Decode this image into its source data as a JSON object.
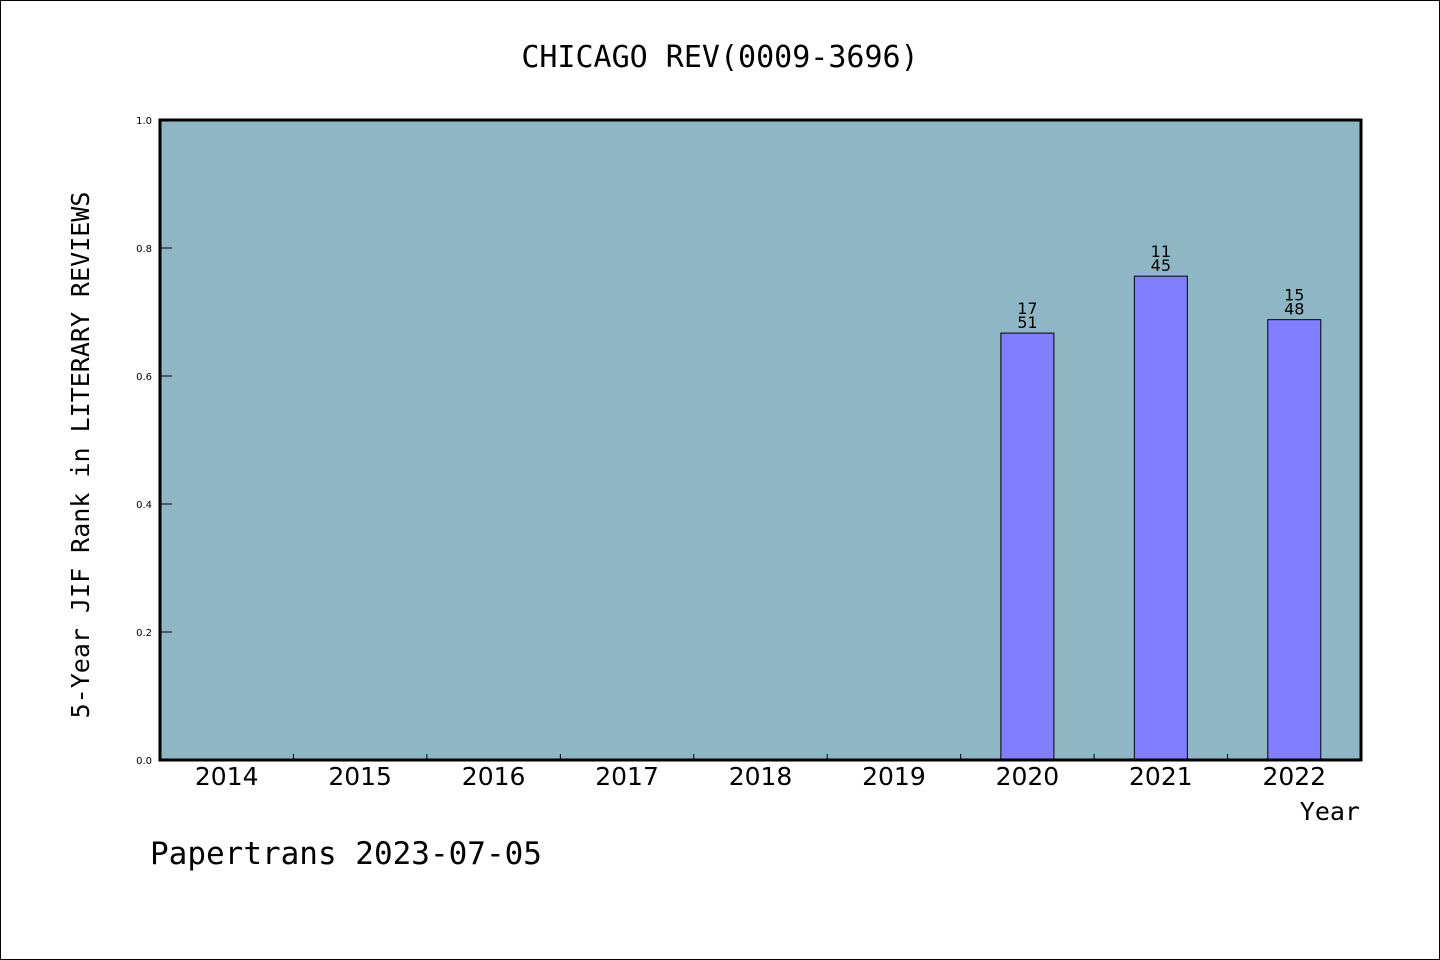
{
  "chart_data": {
    "type": "bar",
    "title": "CHICAGO REV(0009-3696)",
    "xlabel": "Year",
    "ylabel": "5-Year JIF Rank in LITERARY REVIEWS",
    "categories": [
      "2014",
      "2015",
      "2016",
      "2017",
      "2018",
      "2019",
      "2020",
      "2021",
      "2022"
    ],
    "values": [
      null,
      null,
      null,
      null,
      null,
      null,
      0.667,
      0.756,
      0.688
    ],
    "bar_labels": [
      null,
      null,
      null,
      null,
      null,
      null,
      {
        "rank": "17",
        "total": "51"
      },
      {
        "rank": "11",
        "total": "45"
      },
      {
        "rank": "15",
        "total": "48"
      }
    ],
    "ylim": [
      0.0,
      1.0
    ],
    "yticks": [
      "0.0",
      "0.2",
      "0.4",
      "0.6",
      "0.8",
      "1.0"
    ],
    "grid": false,
    "legend": "none"
  },
  "footer": "Papertrans 2023-07-05",
  "colors": {
    "plot_background": "#8fb6c5",
    "bar_fill": "#8080ff",
    "axis": "#000000"
  }
}
